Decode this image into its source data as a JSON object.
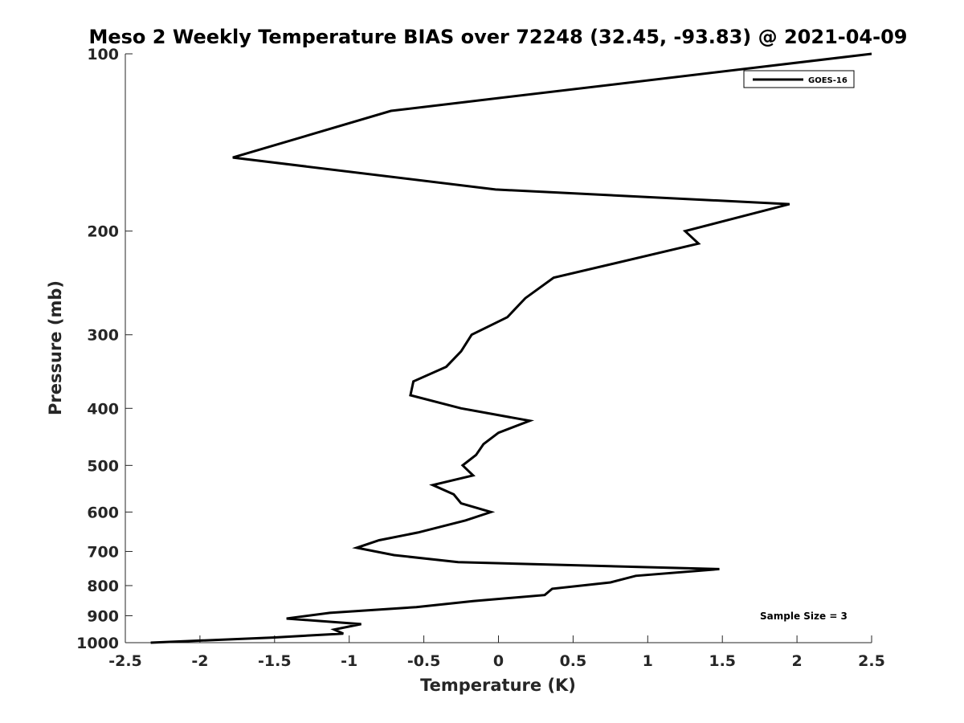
{
  "chart_data": {
    "type": "line",
    "title": "Meso 2 Weekly Temperature BIAS over 72248 (32.45, -93.83) @ 2021-04-09",
    "xlabel": "Temperature (K)",
    "ylabel": "Pressure (mb)",
    "xlim": [
      -2.5,
      2.5
    ],
    "ylim": [
      100,
      1000
    ],
    "y_scale": "log",
    "y_reversed": true,
    "x_ticks": [
      -2.5,
      -2,
      -1.5,
      -1,
      -0.5,
      0,
      0.5,
      1,
      1.5,
      2,
      2.5
    ],
    "x_tick_labels": [
      "-2.5",
      "-2",
      "-1.5",
      "-1",
      "-0.5",
      "0",
      "0.5",
      "1",
      "1.5",
      "2",
      "2.5"
    ],
    "y_ticks": [
      100,
      200,
      300,
      400,
      500,
      600,
      700,
      800,
      900,
      1000
    ],
    "y_tick_labels": [
      "100",
      "200",
      "300",
      "400",
      "500",
      "600",
      "700",
      "800",
      "900",
      "1000"
    ],
    "grid": false,
    "legend_position": "top-right",
    "annotation": "Sample Size = 3",
    "line_color": "#000000",
    "series": [
      {
        "name": "GOES-16",
        "x": [
          2.5,
          -0.72,
          -1.78,
          -0.02,
          1.95,
          1.25,
          1.34,
          0.37,
          0.18,
          0.06,
          -0.18,
          -0.25,
          -0.35,
          -0.57,
          -0.59,
          -0.25,
          0.21,
          0.0,
          -0.1,
          -0.15,
          -0.24,
          -0.17,
          -0.44,
          -0.3,
          -0.25,
          -0.05,
          -0.22,
          -0.54,
          -0.8,
          -0.95,
          -0.7,
          -0.27,
          1.48,
          0.92,
          0.75,
          0.36,
          0.31,
          -0.17,
          -0.55,
          -1.13,
          -1.42,
          -0.92,
          -1.1,
          -1.04,
          -1.51,
          -2.33
        ],
        "y": [
          100,
          125,
          150,
          170,
          180,
          200,
          210,
          240,
          260,
          280,
          300,
          320,
          340,
          360,
          380,
          400,
          420,
          440,
          460,
          480,
          500,
          520,
          540,
          560,
          580,
          600,
          620,
          650,
          670,
          690,
          710,
          730,
          750,
          770,
          790,
          810,
          830,
          850,
          870,
          890,
          910,
          930,
          950,
          965,
          980,
          1000
        ]
      }
    ]
  }
}
